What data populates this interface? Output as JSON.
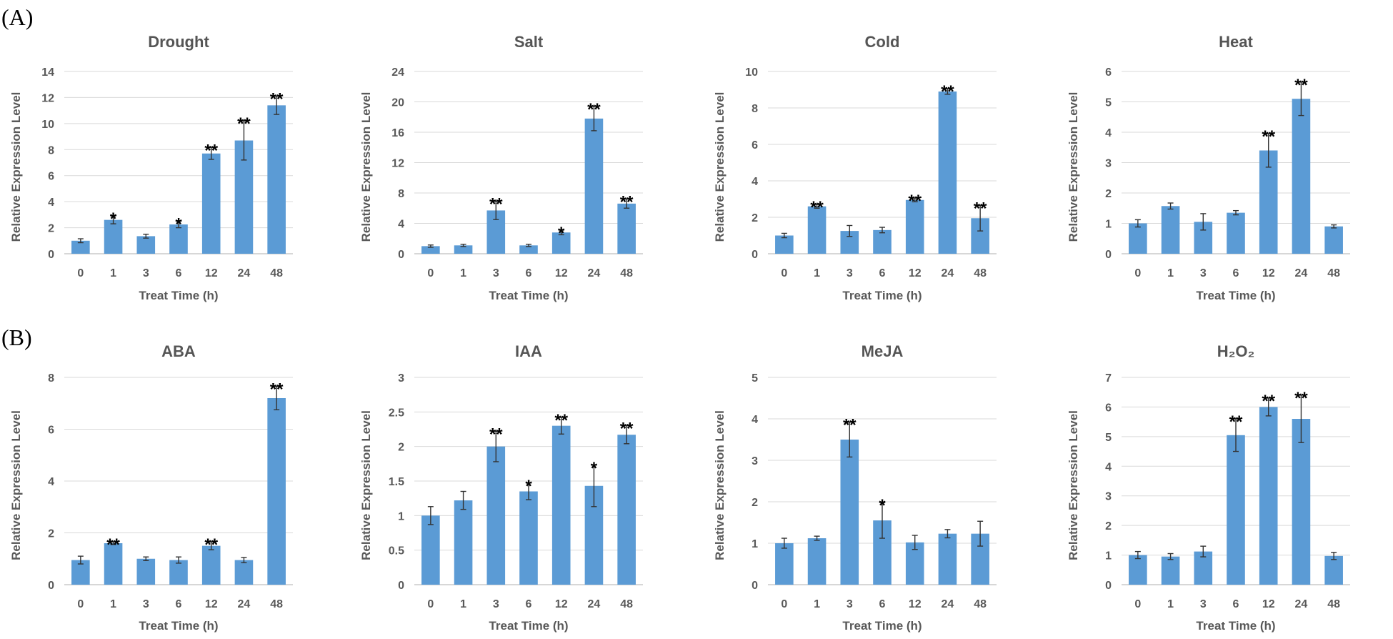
{
  "panel_labels": [
    "(A)",
    "(B)"
  ],
  "chart_data": [
    {
      "type": "bar",
      "title": "Drought",
      "xlabel": "Treat Time (h)",
      "ylabel": "Relative Expression Level",
      "categories": [
        "0",
        "1",
        "3",
        "6",
        "12",
        "24",
        "48"
      ],
      "values": [
        1.0,
        2.6,
        1.35,
        2.25,
        7.7,
        8.7,
        11.4
      ],
      "errors": [
        0.15,
        0.3,
        0.15,
        0.25,
        0.45,
        1.5,
        0.7
      ],
      "significance": [
        "",
        "*",
        "",
        "*",
        "**",
        "**",
        "**"
      ],
      "ylim": [
        0,
        14
      ],
      "yticks": [
        0,
        2,
        4,
        6,
        8,
        10,
        12,
        14
      ],
      "ytick_labels": [
        "0",
        "2",
        "4",
        "6",
        "8",
        "10",
        "12",
        "14"
      ]
    },
    {
      "type": "bar",
      "title": "Salt",
      "xlabel": "Treat Time (h)",
      "ylabel": "Relative Expression Level",
      "categories": [
        "0",
        "1",
        "3",
        "6",
        "12",
        "24",
        "48"
      ],
      "values": [
        1.0,
        1.1,
        5.7,
        1.1,
        2.8,
        17.8,
        6.6
      ],
      "errors": [
        0.15,
        0.15,
        1.2,
        0.15,
        0.3,
        1.6,
        0.6
      ],
      "significance": [
        "",
        "",
        "**",
        "",
        "*",
        "**",
        "**"
      ],
      "ylim": [
        0,
        24
      ],
      "yticks": [
        0,
        4,
        8,
        12,
        16,
        20,
        24
      ],
      "ytick_labels": [
        "0",
        "4",
        "8",
        "12",
        "16",
        "20",
        "24"
      ]
    },
    {
      "type": "bar",
      "title": "Cold",
      "xlabel": "Treat Time (h)",
      "ylabel": "Relative Expression Level",
      "categories": [
        "0",
        "1",
        "3",
        "6",
        "12",
        "24",
        "48"
      ],
      "values": [
        1.0,
        2.6,
        1.25,
        1.3,
        2.95,
        8.9,
        1.95
      ],
      "errors": [
        0.12,
        0.1,
        0.3,
        0.15,
        0.1,
        0.15,
        0.7
      ],
      "significance": [
        "",
        "**",
        "",
        "",
        "**",
        "**",
        "**"
      ],
      "ylim": [
        0,
        10
      ],
      "yticks": [
        0,
        2,
        4,
        6,
        8,
        10
      ],
      "ytick_labels": [
        "0",
        "2",
        "4",
        "6",
        "8",
        "10"
      ]
    },
    {
      "type": "bar",
      "title": "Heat",
      "xlabel": "Treat Time (h)",
      "ylabel": "Relative Expression Level",
      "categories": [
        "0",
        "1",
        "3",
        "6",
        "12",
        "24",
        "48"
      ],
      "values": [
        1.0,
        1.57,
        1.05,
        1.35,
        3.4,
        5.1,
        0.9
      ],
      "errors": [
        0.12,
        0.1,
        0.27,
        0.07,
        0.55,
        0.55,
        0.05
      ],
      "significance": [
        "",
        "",
        "",
        "",
        "**",
        "**",
        ""
      ],
      "ylim": [
        0,
        6
      ],
      "yticks": [
        0,
        1,
        2,
        3,
        4,
        5,
        6
      ],
      "ytick_labels": [
        "0",
        "1",
        "2",
        "3",
        "4",
        "5",
        "6"
      ]
    },
    {
      "type": "bar",
      "title": "ABA",
      "xlabel": "Treat Time (h)",
      "ylabel": "Relative Expression Level",
      "categories": [
        "0",
        "1",
        "3",
        "6",
        "12",
        "24",
        "48"
      ],
      "values": [
        0.95,
        1.6,
        1.0,
        0.95,
        1.5,
        0.95,
        7.2
      ],
      "errors": [
        0.15,
        0.05,
        0.07,
        0.12,
        0.15,
        0.1,
        0.45
      ],
      "significance": [
        "",
        "**",
        "",
        "",
        "**",
        "",
        "**"
      ],
      "ylim": [
        0,
        8
      ],
      "yticks": [
        0,
        2,
        4,
        6,
        8
      ],
      "ytick_labels": [
        "0",
        "2",
        "4",
        "6",
        "8"
      ]
    },
    {
      "type": "bar",
      "title": "IAA",
      "xlabel": "Treat Time (h)",
      "ylabel": "Relative Expression Level",
      "categories": [
        "0",
        "1",
        "3",
        "6",
        "12",
        "24",
        "48"
      ],
      "values": [
        1.0,
        1.22,
        2.0,
        1.35,
        2.3,
        1.43,
        2.17
      ],
      "errors": [
        0.13,
        0.13,
        0.22,
        0.12,
        0.12,
        0.3,
        0.13
      ],
      "significance": [
        "",
        "",
        "**",
        "*",
        "**",
        "*",
        "**"
      ],
      "ylim": [
        0,
        3
      ],
      "yticks": [
        0,
        0.5,
        1,
        1.5,
        2,
        2.5,
        3
      ],
      "ytick_labels": [
        "0",
        "0.5",
        "1",
        "1.5",
        "2",
        "2.5",
        "3"
      ]
    },
    {
      "type": "bar",
      "title": "MeJA",
      "xlabel": "Treat Time (h)",
      "ylabel": "Relative Expression Level",
      "categories": [
        "0",
        "1",
        "3",
        "6",
        "12",
        "24",
        "48"
      ],
      "values": [
        1.0,
        1.12,
        3.5,
        1.55,
        1.02,
        1.23,
        1.23
      ],
      "errors": [
        0.12,
        0.05,
        0.42,
        0.43,
        0.17,
        0.1,
        0.3
      ],
      "significance": [
        "",
        "",
        "**",
        "*",
        "",
        "",
        ""
      ],
      "ylim": [
        0,
        5
      ],
      "yticks": [
        0,
        1,
        2,
        3,
        4,
        5
      ],
      "ytick_labels": [
        "0",
        "1",
        "2",
        "3",
        "4",
        "5"
      ]
    },
    {
      "type": "bar",
      "title": "H₂O₂",
      "xlabel": "Treat Time (h)",
      "ylabel": "Relative Expression Level",
      "categories": [
        "0",
        "1",
        "3",
        "6",
        "12",
        "24",
        "48"
      ],
      "values": [
        1.0,
        0.95,
        1.12,
        5.05,
        6.0,
        5.6,
        0.97
      ],
      "errors": [
        0.12,
        0.1,
        0.18,
        0.55,
        0.3,
        0.8,
        0.12
      ],
      "significance": [
        "",
        "",
        "",
        "**",
        "**",
        "**",
        ""
      ],
      "ylim": [
        0,
        7
      ],
      "yticks": [
        0,
        1,
        2,
        3,
        4,
        5,
        6,
        7
      ],
      "ytick_labels": [
        "0",
        "1",
        "2",
        "3",
        "4",
        "5",
        "6",
        "7"
      ]
    }
  ]
}
